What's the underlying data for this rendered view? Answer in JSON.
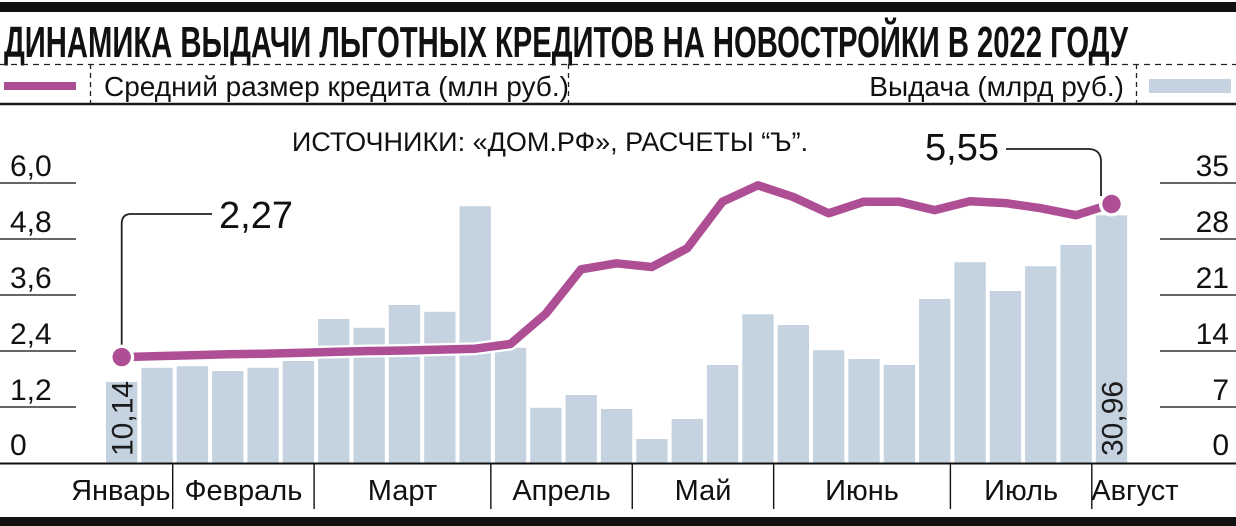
{
  "page": {
    "title": "ДИНАМИКА ВЫДАЧИ ЛЬГОТНЫХ КРЕДИТОВ НА НОВОСТРОЙКИ В 2022 ГОДУ",
    "source_note": "ИСТОЧНИКИ: «ДОМ.РФ», РАСЧЕТЫ “Ъ”."
  },
  "legend": {
    "line_label": "Средний размер кредита (млн руб.)",
    "bar_label": "Выдача (млрд руб.)"
  },
  "colors": {
    "line": "#ae4f96",
    "bar": "#c5d3e1",
    "ink": "#111111"
  },
  "chart_data": {
    "type": "bar+line",
    "title": "Динамика выдачи льготных кредитов на новостройки в 2022 году",
    "months": [
      {
        "label": "Январь",
        "weeks": 2
      },
      {
        "label": "Февраль",
        "weeks": 4
      },
      {
        "label": "Март",
        "weeks": 5
      },
      {
        "label": "Апрель",
        "weeks": 4
      },
      {
        "label": "Май",
        "weeks": 4
      },
      {
        "label": "Июнь",
        "weeks": 5
      },
      {
        "label": "Июль",
        "weeks": 4
      },
      {
        "label": "Август",
        "weeks": 1
      }
    ],
    "bar_series": {
      "name": "Выдача (млрд руб.)",
      "axis": "right",
      "values": [
        10.14,
        11.9,
        12.1,
        11.5,
        11.9,
        12.75,
        18.0,
        16.9,
        19.75,
        18.9,
        32.1,
        14.4,
        6.9,
        8.5,
        6.75,
        3.0,
        5.5,
        12.25,
        18.6,
        17.25,
        14.1,
        13.0,
        12.25,
        20.5,
        25.1,
        21.5,
        24.6,
        27.25,
        30.96
      ]
    },
    "line_series": {
      "name": "Средний размер кредита (млн руб.)",
      "axis": "left",
      "values": [
        2.27,
        2.29,
        2.31,
        2.33,
        2.34,
        2.36,
        2.38,
        2.4,
        2.41,
        2.43,
        2.45,
        2.55,
        3.2,
        4.15,
        4.28,
        4.2,
        4.6,
        5.6,
        5.95,
        5.7,
        5.35,
        5.6,
        5.6,
        5.42,
        5.61,
        5.57,
        5.46,
        5.31,
        5.55
      ]
    },
    "left_axis": {
      "labels_top_to_bottom": [
        "6,0",
        "4,8",
        "3,6",
        "2,4",
        "1,2",
        "0"
      ],
      "range": [
        0,
        6.0
      ]
    },
    "right_axis": {
      "labels_top_to_bottom": [
        "35",
        "28",
        "21",
        "14",
        "7",
        "0"
      ],
      "range": [
        0,
        35
      ]
    },
    "grid": "tick-dashes-on-sides",
    "legend_position": "top",
    "annotations": {
      "line_first": "2,27",
      "line_last": "5,55",
      "bar_first": "10,14",
      "bar_last": "30,96"
    }
  }
}
